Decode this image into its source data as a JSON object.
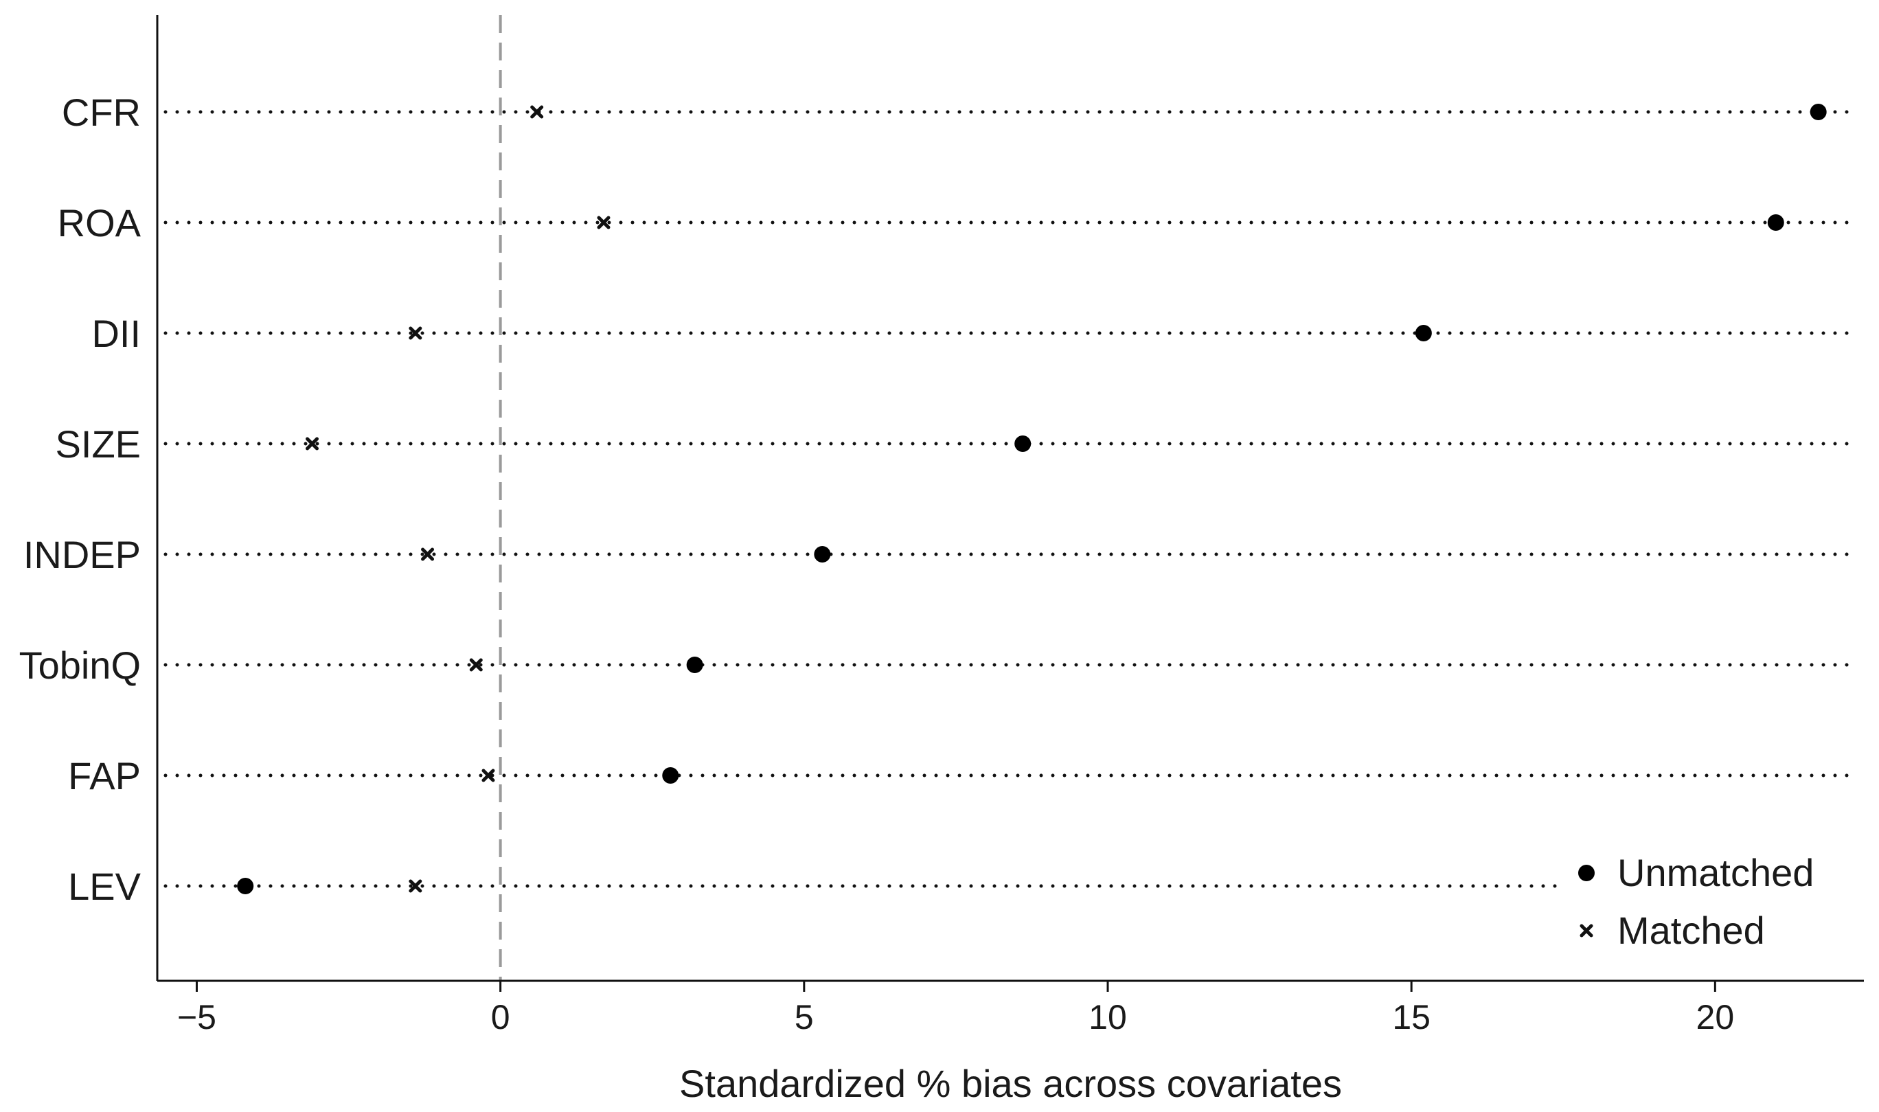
{
  "chart_data": {
    "type": "scatter",
    "title": "",
    "xlabel": "Standardized % bias across covariates",
    "ylabel": "",
    "xlim": [
      -5.65,
      22.45
    ],
    "xticks": [
      {
        "value": -5,
        "label": "−5"
      },
      {
        "value": 0,
        "label": "0"
      },
      {
        "value": 5,
        "label": "5"
      },
      {
        "value": 10,
        "label": "10"
      },
      {
        "value": 15,
        "label": "15"
      },
      {
        "value": 20,
        "label": "20"
      }
    ],
    "categories": [
      "CFR",
      "ROA",
      "DII",
      "SIZE",
      "INDEP",
      "TobinQ",
      "FAP",
      "LEV"
    ],
    "series": [
      {
        "name": "Unmatched",
        "marker": "dot",
        "values": [
          21.7,
          21.0,
          15.2,
          8.6,
          5.3,
          3.2,
          2.8,
          -4.2
        ]
      },
      {
        "name": "Matched",
        "marker": "x",
        "values": [
          0.6,
          1.7,
          -1.4,
          -3.1,
          -1.2,
          -0.4,
          -0.2,
          -1.4
        ]
      }
    ],
    "reference_line": 0,
    "guide_lines": "dotted",
    "grid": false,
    "legend_position": "bottom-right"
  }
}
